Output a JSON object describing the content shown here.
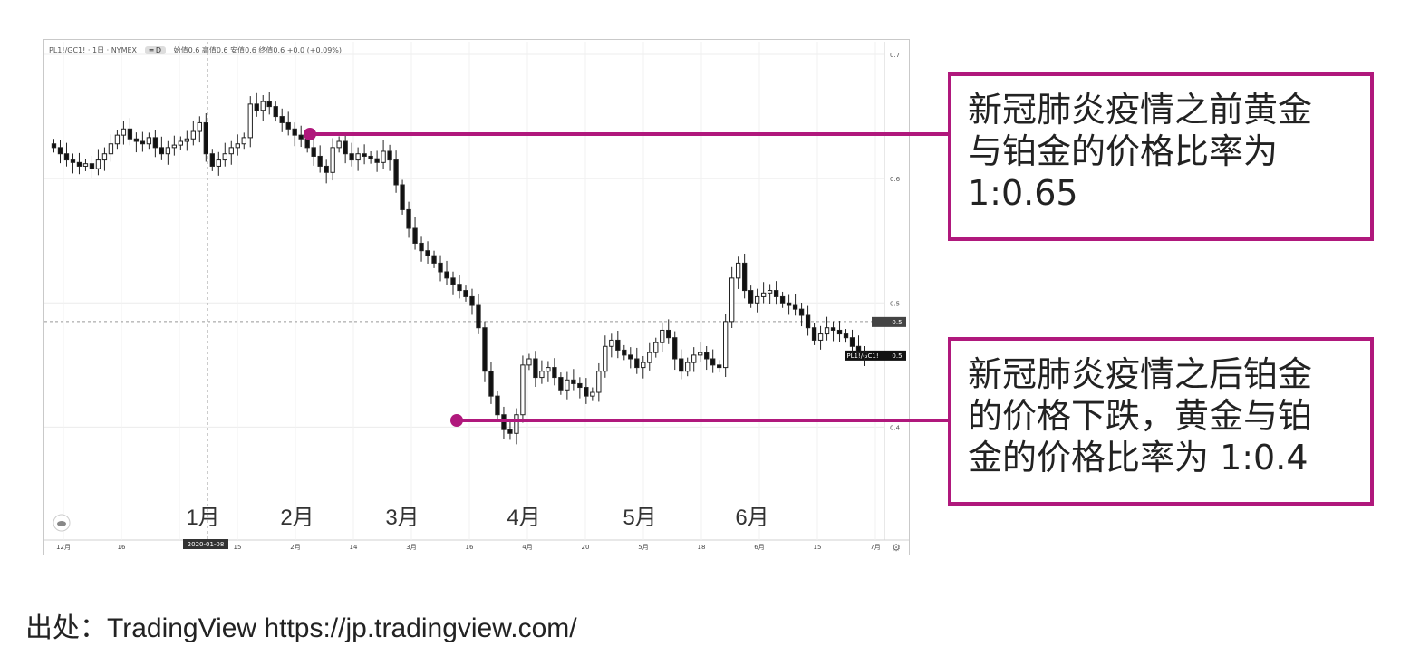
{
  "chart_header": {
    "symbol": "PL1!/GC1! · 1日 · NYMEX",
    "chip": "═ D",
    "ohlc": "始值0.6 高值0.6 安值0.6 终值0.6 +0.0 (+0.09%)"
  },
  "annotations": {
    "top": {
      "text_line1": "新冠肺炎疫情之前黄金",
      "text_line2": "与铂金的价格比率为",
      "text_line3": "1:0.65"
    },
    "bottom": {
      "text_line1": "新冠肺炎疫情之后铂金",
      "text_line2": "的价格下跌，黄金与铂",
      "text_line3": "金的价格比率为 1:0.4"
    },
    "marker_color": "#b0187c"
  },
  "source": "出处：TradingView https://jp.tradingview.com/",
  "price_tag": "0.5",
  "series_tag": "PL1!/GC1!",
  "date_tag": "2020-01-08",
  "chart_data": {
    "type": "candlestick",
    "title": "",
    "series_name": "PL1!/GC1!",
    "ylim": [
      0.35,
      0.7
    ],
    "y_ticks": [
      "0.7",
      "0.6",
      "0.5",
      "0.4"
    ],
    "month_labels": [
      "1月",
      "2月",
      "3月",
      "4月",
      "5月",
      "6月"
    ],
    "x_ticks": [
      "12月",
      "16",
      "2020-01-08",
      "15",
      "2月",
      "14",
      "3月",
      "16",
      "4月",
      "20",
      "5月",
      "18",
      "6月",
      "15",
      "7月"
    ],
    "highlight_points": [
      {
        "label": "pre",
        "ratio": 0.645
      },
      {
        "label": "post",
        "ratio": 0.415
      }
    ],
    "closes": [
      0.625,
      0.62,
      0.615,
      0.613,
      0.61,
      0.612,
      0.608,
      0.615,
      0.62,
      0.628,
      0.635,
      0.64,
      0.632,
      0.63,
      0.628,
      0.633,
      0.625,
      0.62,
      0.625,
      0.627,
      0.63,
      0.632,
      0.638,
      0.645,
      0.62,
      0.61,
      0.615,
      0.62,
      0.625,
      0.628,
      0.633,
      0.66,
      0.655,
      0.662,
      0.658,
      0.65,
      0.645,
      0.64,
      0.635,
      0.632,
      0.625,
      0.618,
      0.61,
      0.605,
      0.625,
      0.63,
      0.62,
      0.615,
      0.62,
      0.618,
      0.616,
      0.613,
      0.622,
      0.615,
      0.595,
      0.575,
      0.56,
      0.548,
      0.542,
      0.538,
      0.532,
      0.525,
      0.52,
      0.515,
      0.51,
      0.505,
      0.498,
      0.48,
      0.445,
      0.425,
      0.41,
      0.398,
      0.395,
      0.41,
      0.45,
      0.455,
      0.44,
      0.445,
      0.448,
      0.44,
      0.43,
      0.438,
      0.435,
      0.432,
      0.425,
      0.428,
      0.445,
      0.465,
      0.47,
      0.462,
      0.458,
      0.455,
      0.448,
      0.452,
      0.46,
      0.468,
      0.478,
      0.472,
      0.455,
      0.445,
      0.452,
      0.458,
      0.46,
      0.455,
      0.45,
      0.448,
      0.485,
      0.52,
      0.532,
      0.51,
      0.5,
      0.505,
      0.508,
      0.51,
      0.505,
      0.5,
      0.498,
      0.495,
      0.49,
      0.48,
      0.47,
      0.475,
      0.48,
      0.478,
      0.475,
      0.472,
      0.465,
      0.46,
      0.458
    ]
  }
}
